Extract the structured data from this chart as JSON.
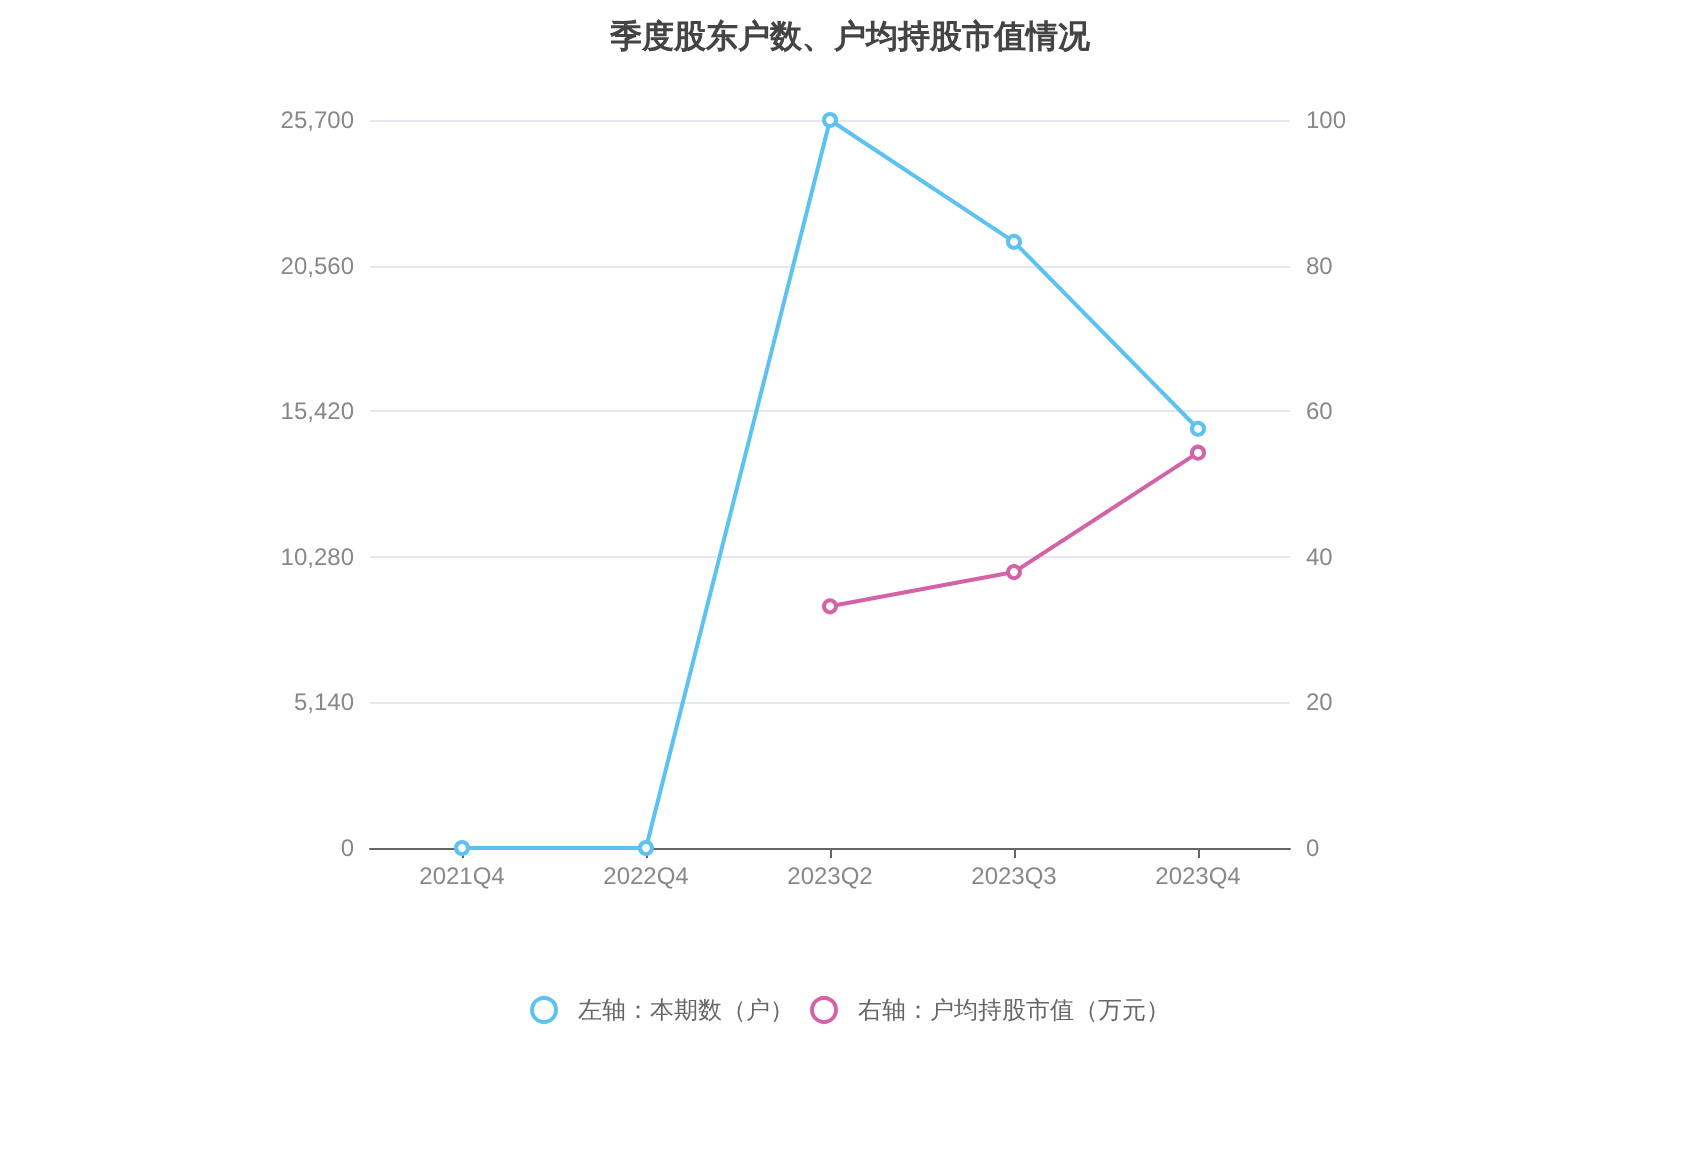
{
  "chart_data": {
    "type": "line",
    "title": "季度股东户数、户均持股市值情况",
    "categories": [
      "2021Q4",
      "2022Q4",
      "2023Q2",
      "2023Q3",
      "2023Q4"
    ],
    "series": [
      {
        "name": "左轴：本期数（户）",
        "color": "#5bc2f2",
        "values": [
          0,
          0,
          25700,
          21400,
          14800
        ]
      },
      {
        "name": "右轴：户均持股市值（万元）",
        "color": "#d462a6",
        "axis": "y2",
        "values": [
          null,
          null,
          33.2,
          37.9,
          54.3
        ]
      }
    ],
    "ylim": [
      0,
      25700
    ],
    "yticks": [
      0,
      {
        "value": 5140,
        "label": "5,140"
      },
      {
        "value": 10280,
        "label": "10,280"
      },
      {
        "value": 15420,
        "label": "15,420"
      },
      {
        "value": 20560,
        "label": "20,560"
      },
      {
        "value": 25700,
        "label": "25,700"
      }
    ],
    "y2lim": [
      0,
      100
    ],
    "y2ticks": [
      0,
      20,
      40,
      60,
      80,
      100
    ],
    "grid": "y",
    "legend": "bottom",
    "marker": "circle",
    "line_style": "solid"
  }
}
